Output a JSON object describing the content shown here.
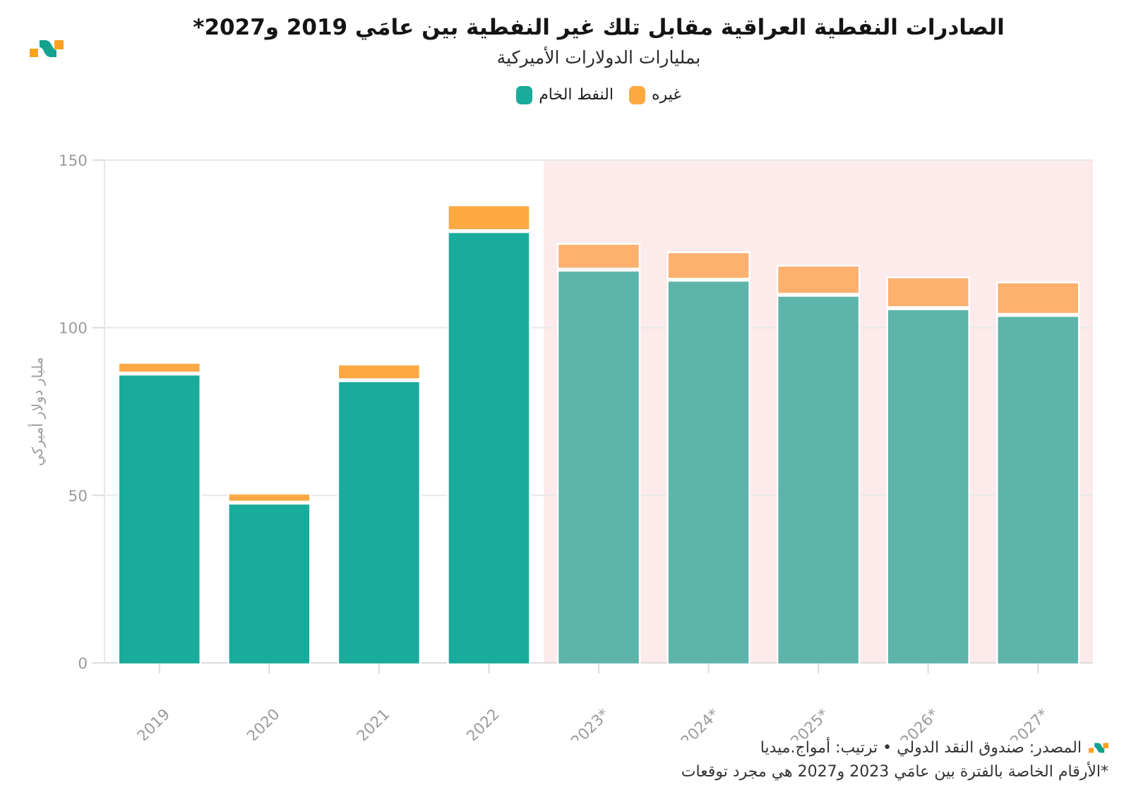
{
  "header": {
    "title": "الصادرات النفطية العراقية مقابل تلك غير النفطية بين عامَي 2019 و2027*",
    "subtitle": "بمليارات الدولارات الأميركية"
  },
  "legend": {
    "items": [
      {
        "id": "other",
        "label": "غيره",
        "color": "#fca944"
      },
      {
        "id": "crude",
        "label": "النفط الخام",
        "color": "#19ab9b"
      }
    ]
  },
  "chart_data": {
    "type": "bar",
    "stacked": true,
    "title": "الصادرات النفطية العراقية مقابل تلك غير النفطية بين عامَي 2019 و2027*",
    "subtitle": "بمليارات الدولارات الأميركية",
    "ylabel": "مليار دولار أميركي",
    "ylim": [
      0,
      150
    ],
    "yticks": [
      0,
      50,
      100,
      150
    ],
    "grid": true,
    "legend_position": "top-center",
    "categories": [
      "2019",
      "2020",
      "2021",
      "2022",
      "2023*",
      "2024*",
      "2025*",
      "2026*",
      "2027*"
    ],
    "series": [
      {
        "name": "النفط الخام",
        "values": [
          86,
          47.5,
          84,
          128.5,
          117,
          114,
          109.5,
          105.5,
          103.5
        ]
      },
      {
        "name": "غيره",
        "values": [
          3.5,
          3,
          5,
          8,
          8,
          8.5,
          9,
          9.5,
          10
        ]
      }
    ],
    "totals": [
      89.5,
      50.5,
      89,
      136.5,
      125,
      122.5,
      118.5,
      115,
      113.5
    ],
    "forecast_from_index": 4,
    "colors": {
      "crude": "#19ab9b",
      "other": "#fca944",
      "crude_forecast": "#5db4ab",
      "other_forecast": "#feb06f",
      "forecast_background": "#fdeaea",
      "gridline": "#e8e8e8",
      "baseline": "#dcdcdc",
      "tick": "#dcdcdc",
      "axis_text": "#9b9b9b"
    }
  },
  "footer": {
    "source_line": "المصدر: صندوق النقد الدولي • ترتيب: أمواج.ميديا",
    "footnote_line": "*الأرقام الخاصة بالفترة بين عامَي 2023 و2027 هي مجرد توقعات"
  }
}
